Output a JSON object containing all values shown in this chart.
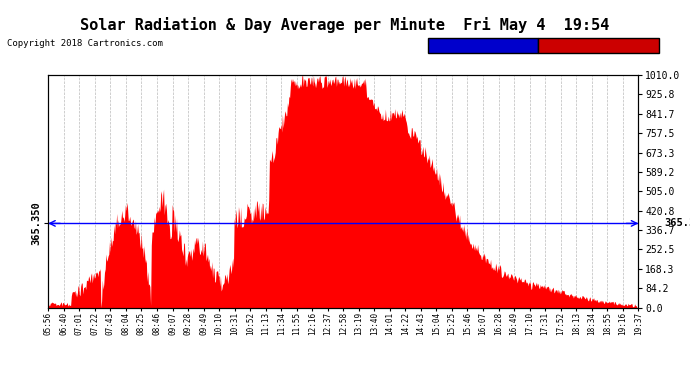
{
  "title": "Solar Radiation & Day Average per Minute  Fri May 4  19:54",
  "copyright": "Copyright 2018 Cartronics.com",
  "median_value": 365.35,
  "ymax": 1010.0,
  "ymin": 0.0,
  "yticks_right": [
    0.0,
    84.2,
    168.3,
    252.5,
    336.7,
    420.8,
    505.0,
    589.2,
    673.3,
    757.5,
    841.7,
    925.8,
    1010.0
  ],
  "background_color": "#ffffff",
  "bar_color": "#ff0000",
  "median_line_color": "#0000ff",
  "legend_median_bg": "#0000cc",
  "legend_radiation_bg": "#cc0000",
  "xtick_labels": [
    "05:56",
    "06:40",
    "07:01",
    "07:22",
    "07:43",
    "08:04",
    "08:25",
    "08:46",
    "09:07",
    "09:28",
    "09:49",
    "10:10",
    "10:31",
    "10:52",
    "11:13",
    "11:34",
    "11:55",
    "12:16",
    "12:37",
    "12:58",
    "13:19",
    "13:40",
    "14:01",
    "14:22",
    "14:43",
    "15:04",
    "15:25",
    "15:46",
    "16:07",
    "16:28",
    "16:49",
    "17:10",
    "17:31",
    "17:52",
    "18:13",
    "18:34",
    "18:55",
    "19:16",
    "19:37"
  ],
  "num_bars": 820,
  "seed": 10
}
